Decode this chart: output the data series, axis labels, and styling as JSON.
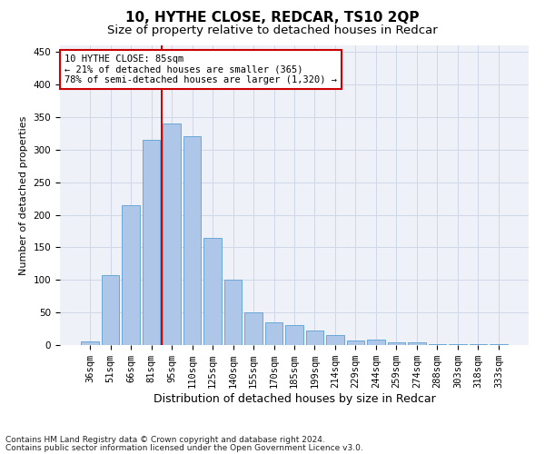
{
  "title1": "10, HYTHE CLOSE, REDCAR, TS10 2QP",
  "title2": "Size of property relative to detached houses in Redcar",
  "xlabel": "Distribution of detached houses by size in Redcar",
  "ylabel": "Number of detached properties",
  "categories": [
    "36sqm",
    "51sqm",
    "66sqm",
    "81sqm",
    "95sqm",
    "110sqm",
    "125sqm",
    "140sqm",
    "155sqm",
    "170sqm",
    "185sqm",
    "199sqm",
    "214sqm",
    "229sqm",
    "244sqm",
    "259sqm",
    "274sqm",
    "288sqm",
    "303sqm",
    "318sqm",
    "333sqm"
  ],
  "values": [
    5,
    107,
    215,
    315,
    340,
    320,
    165,
    100,
    50,
    35,
    30,
    22,
    15,
    7,
    8,
    4,
    4,
    2,
    2,
    2,
    2
  ],
  "bar_color": "#aec6e8",
  "bar_edge_color": "#5a9fd4",
  "grid_color": "#d0d8e8",
  "background_color": "#eef2f8",
  "red_line_x": 3.5,
  "annotation_line1": "10 HYTHE CLOSE: 85sqm",
  "annotation_line2": "← 21% of detached houses are smaller (365)",
  "annotation_line3": "78% of semi-detached houses are larger (1,320) →",
  "annotation_box_color": "#ffffff",
  "annotation_box_edge": "#cc0000",
  "footer1": "Contains HM Land Registry data © Crown copyright and database right 2024.",
  "footer2": "Contains public sector information licensed under the Open Government Licence v3.0.",
  "ylim": [
    0,
    460
  ],
  "yticks": [
    0,
    50,
    100,
    150,
    200,
    250,
    300,
    350,
    400,
    450
  ],
  "title1_fontsize": 11,
  "title2_fontsize": 9.5,
  "xlabel_fontsize": 9,
  "ylabel_fontsize": 8,
  "tick_fontsize": 7.5,
  "annotation_fontsize": 7.5,
  "footer_fontsize": 6.5
}
